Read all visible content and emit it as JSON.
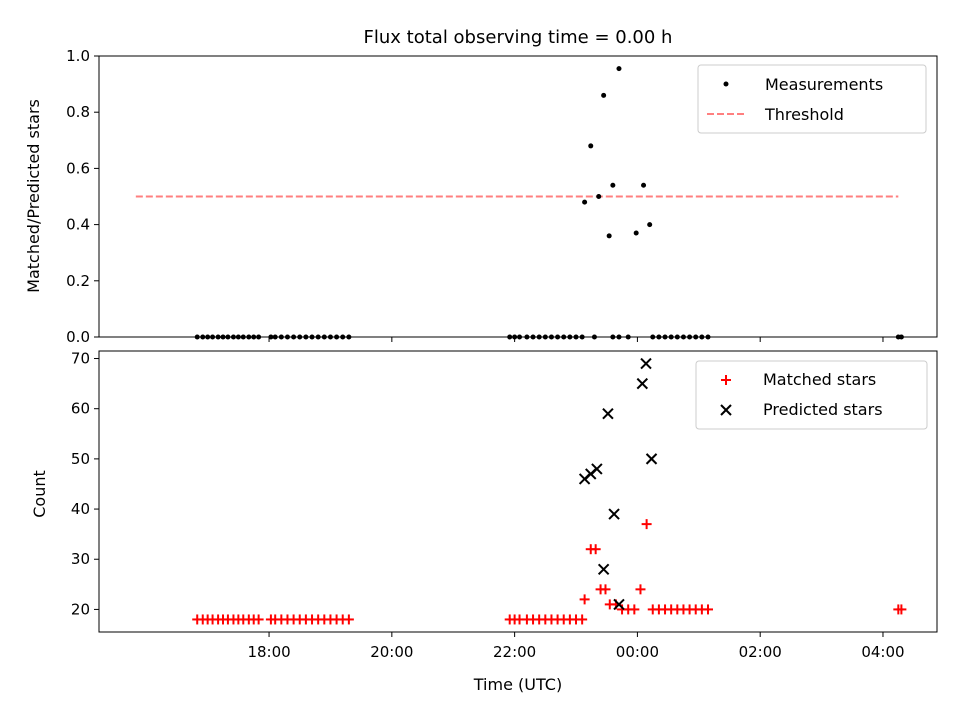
{
  "chart_data": [
    {
      "type": "scatter",
      "title": "Flux total observing time = 0.00 h",
      "xlabel": "",
      "ylabel": "Matched/Predicted stars",
      "ylim": [
        0,
        1.0
      ],
      "yticks": [
        "0.0",
        "0.2",
        "0.4",
        "0.6",
        "0.8",
        "1.0"
      ],
      "xlim": [
        15.23,
        28.88
      ],
      "legend_position": "top-right",
      "legend": [
        "Measurements",
        "Threshold"
      ],
      "threshold": {
        "name": "Threshold",
        "y": 0.5,
        "x_start": 15.83,
        "x_end": 28.25,
        "color": "#ff7f7f"
      },
      "series": [
        {
          "name": "Measurements",
          "color": "#000000",
          "points": [
            [
              16.83,
              0
            ],
            [
              16.92,
              0
            ],
            [
              17.0,
              0
            ],
            [
              17.08,
              0
            ],
            [
              17.17,
              0
            ],
            [
              17.25,
              0
            ],
            [
              17.33,
              0
            ],
            [
              17.42,
              0
            ],
            [
              17.5,
              0
            ],
            [
              17.58,
              0
            ],
            [
              17.67,
              0
            ],
            [
              17.75,
              0
            ],
            [
              17.83,
              0
            ],
            [
              18.03,
              0
            ],
            [
              18.1,
              0
            ],
            [
              18.2,
              0
            ],
            [
              18.3,
              0
            ],
            [
              18.4,
              0
            ],
            [
              18.5,
              0
            ],
            [
              18.6,
              0
            ],
            [
              18.7,
              0
            ],
            [
              18.8,
              0
            ],
            [
              18.9,
              0
            ],
            [
              19.0,
              0
            ],
            [
              19.1,
              0
            ],
            [
              19.2,
              0
            ],
            [
              19.3,
              0
            ],
            [
              21.92,
              0
            ],
            [
              22.0,
              0
            ],
            [
              22.08,
              0
            ],
            [
              22.2,
              0
            ],
            [
              22.3,
              0
            ],
            [
              22.4,
              0
            ],
            [
              22.5,
              0
            ],
            [
              22.6,
              0
            ],
            [
              22.7,
              0
            ],
            [
              22.8,
              0
            ],
            [
              22.9,
              0
            ],
            [
              23.0,
              0
            ],
            [
              23.1,
              0
            ],
            [
              23.3,
              0
            ],
            [
              23.6,
              0
            ],
            [
              23.7,
              0
            ],
            [
              23.85,
              0
            ],
            [
              24.25,
              0
            ],
            [
              24.35,
              0
            ],
            [
              24.45,
              0
            ],
            [
              24.55,
              0
            ],
            [
              24.65,
              0
            ],
            [
              24.75,
              0
            ],
            [
              24.85,
              0
            ],
            [
              24.95,
              0
            ],
            [
              25.05,
              0
            ],
            [
              25.15,
              0
            ],
            [
              28.25,
              0
            ],
            [
              28.3,
              0
            ],
            [
              23.14,
              0.48
            ],
            [
              23.24,
              0.68
            ],
            [
              23.37,
              0.5
            ],
            [
              23.45,
              0.86
            ],
            [
              23.54,
              0.36
            ],
            [
              23.6,
              0.54
            ],
            [
              23.7,
              0.955
            ],
            [
              23.98,
              0.37
            ],
            [
              24.1,
              0.54
            ],
            [
              24.2,
              0.4
            ]
          ]
        }
      ]
    },
    {
      "type": "scatter",
      "title": "",
      "xlabel": "Time (UTC)",
      "ylabel": "Count",
      "ylim": [
        15.5,
        71.5
      ],
      "yticks": [
        "20",
        "30",
        "40",
        "50",
        "60",
        "70"
      ],
      "xlim": [
        15.23,
        28.88
      ],
      "xticks": [
        "18:00",
        "20:00",
        "22:00",
        "00:00",
        "02:00",
        "04:00"
      ],
      "legend_position": "top-right",
      "legend": [
        "Matched stars",
        "Predicted stars"
      ],
      "series": [
        {
          "name": "Matched stars",
          "marker": "+",
          "color": "#ff0000",
          "points": [
            [
              16.83,
              18
            ],
            [
              16.92,
              18
            ],
            [
              17.0,
              18
            ],
            [
              17.08,
              18
            ],
            [
              17.17,
              18
            ],
            [
              17.25,
              18
            ],
            [
              17.33,
              18
            ],
            [
              17.42,
              18
            ],
            [
              17.5,
              18
            ],
            [
              17.58,
              18
            ],
            [
              17.67,
              18
            ],
            [
              17.75,
              18
            ],
            [
              17.83,
              18
            ],
            [
              18.03,
              18
            ],
            [
              18.1,
              18
            ],
            [
              18.2,
              18
            ],
            [
              18.3,
              18
            ],
            [
              18.4,
              18
            ],
            [
              18.5,
              18
            ],
            [
              18.6,
              18
            ],
            [
              18.7,
              18
            ],
            [
              18.8,
              18
            ],
            [
              18.9,
              18
            ],
            [
              19.0,
              18
            ],
            [
              19.1,
              18
            ],
            [
              19.2,
              18
            ],
            [
              19.3,
              18
            ],
            [
              21.92,
              18
            ],
            [
              22.0,
              18
            ],
            [
              22.08,
              18
            ],
            [
              22.2,
              18
            ],
            [
              22.3,
              18
            ],
            [
              22.4,
              18
            ],
            [
              22.5,
              18
            ],
            [
              22.6,
              18
            ],
            [
              22.7,
              18
            ],
            [
              22.8,
              18
            ],
            [
              22.9,
              18
            ],
            [
              23.0,
              18
            ],
            [
              23.1,
              18
            ],
            [
              23.14,
              22
            ],
            [
              23.24,
              32
            ],
            [
              23.32,
              32
            ],
            [
              23.4,
              24
            ],
            [
              23.48,
              24
            ],
            [
              23.55,
              21
            ],
            [
              23.65,
              21
            ],
            [
              23.75,
              20
            ],
            [
              23.85,
              20
            ],
            [
              23.95,
              20
            ],
            [
              24.05,
              24
            ],
            [
              24.15,
              37
            ],
            [
              24.25,
              20
            ],
            [
              24.35,
              20
            ],
            [
              24.45,
              20
            ],
            [
              24.55,
              20
            ],
            [
              24.65,
              20
            ],
            [
              24.75,
              20
            ],
            [
              24.85,
              20
            ],
            [
              24.95,
              20
            ],
            [
              25.05,
              20
            ],
            [
              25.15,
              20
            ],
            [
              28.25,
              20
            ],
            [
              28.3,
              20
            ]
          ]
        },
        {
          "name": "Predicted stars",
          "marker": "x",
          "color": "#000000",
          "points": [
            [
              23.14,
              46
            ],
            [
              23.24,
              47
            ],
            [
              23.34,
              48
            ],
            [
              23.45,
              28
            ],
            [
              23.52,
              59
            ],
            [
              23.62,
              39
            ],
            [
              23.7,
              21
            ],
            [
              24.08,
              65
            ],
            [
              24.14,
              69
            ],
            [
              24.23,
              50
            ]
          ]
        }
      ]
    }
  ]
}
